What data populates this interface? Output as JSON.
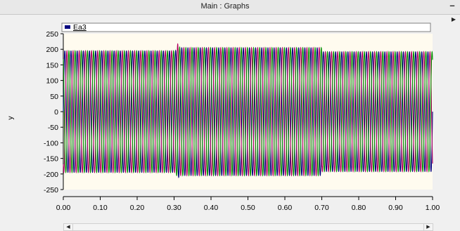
{
  "window": {
    "title": "Main : Graphs",
    "minimize_label": "–",
    "side_arrow": "▶"
  },
  "scroll": {
    "left_arrow": "◀",
    "right_arrow": "▶"
  },
  "colors": {
    "background": "#f0f0f0",
    "plot_background": "#fffbef",
    "legend_swatch": "#00007f",
    "axis": "#000000"
  },
  "chart_data": {
    "type": "line",
    "legend": [
      {
        "name": "Ea3",
        "color": "#00007f"
      }
    ],
    "xlabel": "",
    "ylabel": "y",
    "xlim": [
      0.0,
      1.0
    ],
    "ylim": [
      -250,
      250
    ],
    "xticks": [
      "0.00",
      "0.10",
      "0.20",
      "0.30",
      "0.40",
      "0.50",
      "0.60",
      "0.70",
      "0.80",
      "0.90",
      "1.00"
    ],
    "yticks": [
      "250",
      "200",
      "150",
      "100",
      "50",
      "0",
      "-50",
      "-100",
      "-150",
      "-200",
      "-250"
    ],
    "frequency_hz": 60,
    "series": [
      {
        "color": "#00007f",
        "phase_deg": 0
      },
      {
        "color": "#b00060",
        "phase_deg": -120
      },
      {
        "color": "#009000",
        "phase_deg": 120
      }
    ],
    "amplitude_segments": [
      {
        "x_start": 0.0,
        "x_end": 0.31,
        "amplitude": 195
      },
      {
        "x_start": 0.31,
        "x_end": 0.7,
        "amplitude": 205
      },
      {
        "x_start": 0.7,
        "x_end": 1.0,
        "amplitude": 192
      }
    ],
    "transients": [
      {
        "x": 0.31,
        "peak": 218,
        "trough": -215
      }
    ]
  }
}
